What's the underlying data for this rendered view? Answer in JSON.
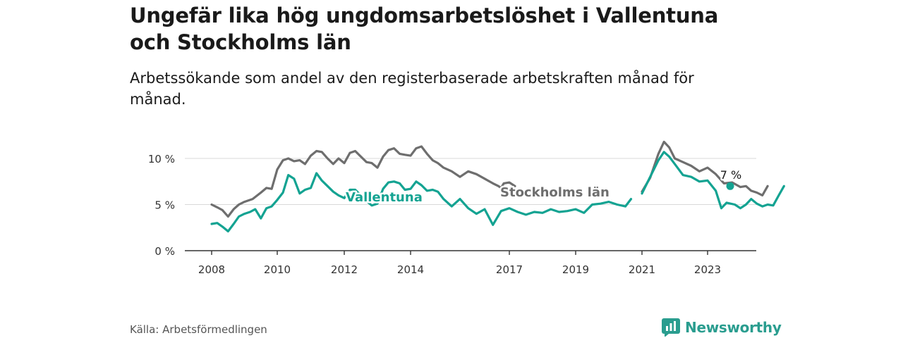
{
  "title": "Ungefär lika hög ungdomsarbetslöshet i Vallentuna och Stockholms län",
  "subtitle": "Arbetssökande som andel av den registerbaserade arbetskraften månad för månad.",
  "source": "Källa: Arbetsförmedlingen",
  "brand": {
    "name": "Newsworthy",
    "icon": "bar-chart-logo-icon"
  },
  "colors": {
    "vallentuna": "#14a392",
    "stockholm": "#6e6e6e",
    "grid": "#d9d9d9",
    "axis": "#333333"
  },
  "chart_data": {
    "type": "line",
    "title": "Ungefär lika hög ungdomsarbetslöshet i Vallentuna och Stockholms län",
    "xlabel": "",
    "ylabel": "",
    "xlim": [
      2008,
      2024.83
    ],
    "ylim": [
      0,
      12
    ],
    "y_ticks": [
      0,
      5,
      10
    ],
    "y_tick_labels": [
      "0 %",
      "5 %",
      "10 %"
    ],
    "x_ticks": [
      2008,
      2010,
      2012,
      2014,
      2017,
      2019,
      2021,
      2023
    ],
    "x_tick_labels": [
      "2008",
      "2010",
      "2012",
      "2014",
      "2017",
      "2019",
      "2021",
      "2023"
    ],
    "last_value_label": "7 %",
    "series": [
      {
        "name": "Stockholms län",
        "label": "Stockholms län",
        "color": "#6e6e6e",
        "points": [
          [
            2008.0,
            5.0
          ],
          [
            2008.17,
            4.7
          ],
          [
            2008.33,
            4.4
          ],
          [
            2008.5,
            3.7
          ],
          [
            2008.67,
            4.5
          ],
          [
            2008.83,
            5.0
          ],
          [
            2009.0,
            5.3
          ],
          [
            2009.25,
            5.6
          ],
          [
            2009.5,
            6.3
          ],
          [
            2009.67,
            6.8
          ],
          [
            2009.83,
            6.7
          ],
          [
            2010.0,
            8.8
          ],
          [
            2010.17,
            9.8
          ],
          [
            2010.33,
            10.0
          ],
          [
            2010.5,
            9.7
          ],
          [
            2010.67,
            9.8
          ],
          [
            2010.83,
            9.4
          ],
          [
            2011.0,
            10.3
          ],
          [
            2011.17,
            10.8
          ],
          [
            2011.33,
            10.7
          ],
          [
            2011.5,
            10.0
          ],
          [
            2011.67,
            9.4
          ],
          [
            2011.83,
            10.0
          ],
          [
            2012.0,
            9.5
          ],
          [
            2012.17,
            10.6
          ],
          [
            2012.33,
            10.8
          ],
          [
            2012.5,
            10.2
          ],
          [
            2012.67,
            9.6
          ],
          [
            2012.83,
            9.5
          ],
          [
            2013.0,
            9.0
          ],
          [
            2013.17,
            10.2
          ],
          [
            2013.33,
            10.9
          ],
          [
            2013.5,
            11.1
          ],
          [
            2013.67,
            10.5
          ],
          [
            2013.83,
            10.4
          ],
          [
            2014.0,
            10.3
          ],
          [
            2014.17,
            11.1
          ],
          [
            2014.33,
            11.3
          ],
          [
            2014.5,
            10.5
          ],
          [
            2014.67,
            9.8
          ],
          [
            2014.83,
            9.5
          ],
          [
            2015.0,
            9.0
          ],
          [
            2015.25,
            8.6
          ],
          [
            2015.5,
            8.0
          ],
          [
            2015.75,
            8.6
          ],
          [
            2016.0,
            8.3
          ],
          [
            2016.25,
            7.8
          ],
          [
            2016.5,
            7.3
          ],
          [
            2016.67,
            7.0
          ],
          [
            2016.75,
            6.8
          ],
          [
            2016.83,
            7.3
          ],
          [
            2017.0,
            7.4
          ],
          [
            2017.17,
            7.0
          ]
        ],
        "points2": [
          [
            2021.0,
            6.4
          ],
          [
            2021.25,
            7.9
          ],
          [
            2021.5,
            10.5
          ],
          [
            2021.67,
            11.8
          ],
          [
            2021.83,
            11.2
          ],
          [
            2022.0,
            10.0
          ],
          [
            2022.25,
            9.6
          ],
          [
            2022.5,
            9.2
          ],
          [
            2022.75,
            8.6
          ],
          [
            2023.0,
            9.0
          ],
          [
            2023.25,
            8.3
          ],
          [
            2023.5,
            7.3
          ],
          [
            2023.75,
            7.4
          ],
          [
            2024.0,
            6.9
          ],
          [
            2024.17,
            7.0
          ],
          [
            2024.33,
            6.5
          ],
          [
            2024.5,
            6.3
          ],
          [
            2024.67,
            6.0
          ],
          [
            2024.83,
            7.0
          ]
        ]
      },
      {
        "name": "Vallentuna",
        "label": "Vallentuna",
        "color": "#14a392",
        "points": [
          [
            2008.0,
            2.9
          ],
          [
            2008.17,
            3.0
          ],
          [
            2008.33,
            2.6
          ],
          [
            2008.5,
            2.1
          ],
          [
            2008.67,
            2.9
          ],
          [
            2008.83,
            3.7
          ],
          [
            2009.0,
            4.0
          ],
          [
            2009.17,
            4.2
          ],
          [
            2009.33,
            4.5
          ],
          [
            2009.5,
            3.5
          ],
          [
            2009.67,
            4.6
          ],
          [
            2009.83,
            4.8
          ],
          [
            2010.0,
            5.5
          ],
          [
            2010.17,
            6.3
          ],
          [
            2010.33,
            8.2
          ],
          [
            2010.5,
            7.8
          ],
          [
            2010.67,
            6.2
          ],
          [
            2010.83,
            6.6
          ],
          [
            2011.0,
            6.8
          ],
          [
            2011.17,
            8.4
          ],
          [
            2011.33,
            7.6
          ],
          [
            2011.5,
            7.0
          ],
          [
            2011.67,
            6.4
          ],
          [
            2011.83,
            6.0
          ],
          [
            2012.0,
            5.7
          ],
          [
            2012.17,
            6.6
          ],
          [
            2012.33,
            6.6
          ],
          [
            2012.5,
            6.0
          ],
          [
            2012.67,
            5.4
          ],
          [
            2012.83,
            4.9
          ],
          [
            2013.0,
            5.1
          ],
          [
            2013.17,
            6.7
          ],
          [
            2013.33,
            7.4
          ],
          [
            2013.5,
            7.5
          ],
          [
            2013.67,
            7.3
          ],
          [
            2013.83,
            6.6
          ],
          [
            2014.0,
            6.7
          ],
          [
            2014.17,
            7.5
          ],
          [
            2014.33,
            7.1
          ],
          [
            2014.5,
            6.5
          ],
          [
            2014.67,
            6.6
          ],
          [
            2014.83,
            6.4
          ],
          [
            2015.0,
            5.6
          ],
          [
            2015.25,
            4.8
          ],
          [
            2015.5,
            5.6
          ],
          [
            2015.75,
            4.6
          ],
          [
            2016.0,
            4.0
          ],
          [
            2016.25,
            4.5
          ],
          [
            2016.5,
            2.8
          ],
          [
            2016.75,
            4.3
          ],
          [
            2017.0,
            4.6
          ],
          [
            2017.25,
            4.2
          ],
          [
            2017.5,
            3.9
          ],
          [
            2017.75,
            4.2
          ],
          [
            2018.0,
            4.1
          ],
          [
            2018.25,
            4.5
          ],
          [
            2018.5,
            4.2
          ],
          [
            2018.75,
            4.3
          ],
          [
            2019.0,
            4.5
          ],
          [
            2019.25,
            4.1
          ],
          [
            2019.5,
            5.0
          ],
          [
            2019.75,
            5.1
          ],
          [
            2020.0,
            5.3
          ],
          [
            2020.25,
            5.0
          ],
          [
            2020.5,
            4.8
          ],
          [
            2020.67,
            5.6
          ]
        ],
        "points2": [
          [
            2021.0,
            6.2
          ],
          [
            2021.25,
            8.0
          ],
          [
            2021.5,
            9.8
          ],
          [
            2021.67,
            10.7
          ],
          [
            2021.83,
            10.2
          ],
          [
            2022.0,
            9.4
          ],
          [
            2022.25,
            8.2
          ],
          [
            2022.5,
            8.0
          ],
          [
            2022.75,
            7.5
          ],
          [
            2023.0,
            7.6
          ],
          [
            2023.25,
            6.5
          ],
          [
            2023.42,
            4.6
          ],
          [
            2023.58,
            5.2
          ],
          [
            2023.83,
            5.0
          ],
          [
            2024.0,
            4.6
          ],
          [
            2024.17,
            5.0
          ],
          [
            2024.33,
            5.6
          ],
          [
            2024.5,
            5.1
          ],
          [
            2024.67,
            4.8
          ],
          [
            2024.83,
            5.0
          ],
          [
            2025.0,
            4.9
          ],
          [
            2025.17,
            6.0
          ],
          [
            2025.33,
            7.0
          ]
        ]
      }
    ]
  }
}
